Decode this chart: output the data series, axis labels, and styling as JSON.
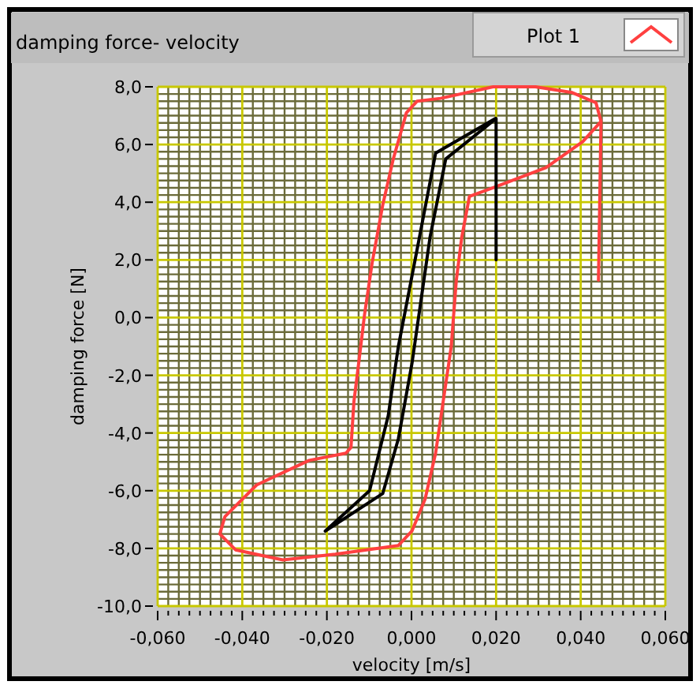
{
  "chart_data": {
    "type": "line",
    "title": "damping force- velocity",
    "xlabel": "velocity [m/s]",
    "ylabel": "damping force [N]",
    "xlim": [
      -0.06,
      0.06
    ],
    "ylim": [
      -10,
      8
    ],
    "xticks": [
      {
        "value": -0.06,
        "label": "-0,060"
      },
      {
        "value": -0.0575,
        "label": null
      },
      {
        "value": -0.055,
        "label": null
      },
      {
        "value": -0.0525,
        "label": null
      },
      {
        "value": -0.05,
        "label": null
      },
      {
        "value": -0.0475,
        "label": null
      },
      {
        "value": -0.045,
        "label": null
      },
      {
        "value": -0.0425,
        "label": null
      },
      {
        "value": -0.04,
        "label": "-0,040"
      },
      {
        "value": -0.0375,
        "label": null
      },
      {
        "value": -0.035,
        "label": null
      },
      {
        "value": -0.0325,
        "label": null
      },
      {
        "value": -0.03,
        "label": null
      },
      {
        "value": -0.0275,
        "label": null
      },
      {
        "value": -0.025,
        "label": null
      },
      {
        "value": -0.0225,
        "label": null
      },
      {
        "value": -0.02,
        "label": "-0,020"
      },
      {
        "value": -0.0175,
        "label": null
      },
      {
        "value": -0.015,
        "label": null
      },
      {
        "value": -0.0125,
        "label": null
      },
      {
        "value": -0.01,
        "label": null
      },
      {
        "value": -0.0075,
        "label": null
      },
      {
        "value": -0.005,
        "label": null
      },
      {
        "value": -0.0025,
        "label": null
      },
      {
        "value": 0,
        "label": "0,000"
      },
      {
        "value": 0.0025,
        "label": null
      },
      {
        "value": 0.005,
        "label": null
      },
      {
        "value": 0.0075,
        "label": null
      },
      {
        "value": 0.01,
        "label": null
      },
      {
        "value": 0.0125,
        "label": null
      },
      {
        "value": 0.015,
        "label": null
      },
      {
        "value": 0.0175,
        "label": null
      },
      {
        "value": 0.02,
        "label": "0,020"
      },
      {
        "value": 0.0225,
        "label": null
      },
      {
        "value": 0.025,
        "label": null
      },
      {
        "value": 0.0275,
        "label": null
      },
      {
        "value": 0.03,
        "label": null
      },
      {
        "value": 0.0325,
        "label": null
      },
      {
        "value": 0.035,
        "label": null
      },
      {
        "value": 0.0375,
        "label": null
      },
      {
        "value": 0.04,
        "label": "0,040"
      },
      {
        "value": 0.0425,
        "label": null
      },
      {
        "value": 0.045,
        "label": null
      },
      {
        "value": 0.0475,
        "label": null
      },
      {
        "value": 0.05,
        "label": null
      },
      {
        "value": 0.0525,
        "label": null
      },
      {
        "value": 0.055,
        "label": null
      },
      {
        "value": 0.0575,
        "label": null
      },
      {
        "value": 0.06,
        "label": "0,060"
      }
    ],
    "yticks": [
      {
        "value": -10,
        "label": "-10,0"
      },
      {
        "value": -9.75,
        "label": null
      },
      {
        "value": -9.5,
        "label": null
      },
      {
        "value": -9.25,
        "label": null
      },
      {
        "value": -9,
        "label": null
      },
      {
        "value": -8.75,
        "label": null
      },
      {
        "value": -8.5,
        "label": null
      },
      {
        "value": -8.25,
        "label": null
      },
      {
        "value": -8,
        "label": "-8,0"
      },
      {
        "value": -7.75,
        "label": null
      },
      {
        "value": -7.5,
        "label": null
      },
      {
        "value": -7.25,
        "label": null
      },
      {
        "value": -7,
        "label": null
      },
      {
        "value": -6.75,
        "label": null
      },
      {
        "value": -6.5,
        "label": null
      },
      {
        "value": -6.25,
        "label": null
      },
      {
        "value": -6,
        "label": "-6,0"
      },
      {
        "value": -5.75,
        "label": null
      },
      {
        "value": -5.5,
        "label": null
      },
      {
        "value": -5.25,
        "label": null
      },
      {
        "value": -5,
        "label": null
      },
      {
        "value": -4.75,
        "label": null
      },
      {
        "value": -4.5,
        "label": null
      },
      {
        "value": -4.25,
        "label": null
      },
      {
        "value": -4,
        "label": "-4,0"
      },
      {
        "value": -3.75,
        "label": null
      },
      {
        "value": -3.5,
        "label": null
      },
      {
        "value": -3.25,
        "label": null
      },
      {
        "value": -3,
        "label": null
      },
      {
        "value": -2.75,
        "label": null
      },
      {
        "value": -2.5,
        "label": null
      },
      {
        "value": -2.25,
        "label": null
      },
      {
        "value": -2,
        "label": "-2,0"
      },
      {
        "value": -1.75,
        "label": null
      },
      {
        "value": -1.5,
        "label": null
      },
      {
        "value": -1.25,
        "label": null
      },
      {
        "value": -1,
        "label": null
      },
      {
        "value": -0.75,
        "label": null
      },
      {
        "value": -0.5,
        "label": null
      },
      {
        "value": -0.25,
        "label": null
      },
      {
        "value": 0,
        "label": "0,0"
      },
      {
        "value": 0.25,
        "label": null
      },
      {
        "value": 0.5,
        "label": null
      },
      {
        "value": 0.75,
        "label": null
      },
      {
        "value": 1,
        "label": null
      },
      {
        "value": 1.25,
        "label": null
      },
      {
        "value": 1.5,
        "label": null
      },
      {
        "value": 1.75,
        "label": null
      },
      {
        "value": 2,
        "label": "2,0"
      },
      {
        "value": 2.25,
        "label": null
      },
      {
        "value": 2.5,
        "label": null
      },
      {
        "value": 2.75,
        "label": null
      },
      {
        "value": 3,
        "label": null
      },
      {
        "value": 3.25,
        "label": null
      },
      {
        "value": 3.5,
        "label": null
      },
      {
        "value": 3.75,
        "label": null
      },
      {
        "value": 4,
        "label": "4,0"
      },
      {
        "value": 4.25,
        "label": null
      },
      {
        "value": 4.5,
        "label": null
      },
      {
        "value": 4.75,
        "label": null
      },
      {
        "value": 5,
        "label": null
      },
      {
        "value": 5.25,
        "label": null
      },
      {
        "value": 5.5,
        "label": null
      },
      {
        "value": 5.75,
        "label": null
      },
      {
        "value": 6,
        "label": "6,0"
      },
      {
        "value": 6.25,
        "label": null
      },
      {
        "value": 6.5,
        "label": null
      },
      {
        "value": 6.75,
        "label": null
      },
      {
        "value": 7,
        "label": null
      },
      {
        "value": 7.25,
        "label": null
      },
      {
        "value": 7.5,
        "label": null
      },
      {
        "value": 7.75,
        "label": null
      },
      {
        "value": 8,
        "label": "8,0"
      }
    ],
    "grid": true,
    "legend": "top right",
    "marker": "none",
    "line_style": "solid",
    "series": [
      {
        "name": "Plot 1",
        "color": "#ff4040",
        "x": [
          0.0442,
          0.0448,
          0.0436,
          0.038,
          0.0293,
          0.0193,
          0.0069,
          0.0013,
          -0.0012,
          -0.0043,
          -0.0068,
          -0.0093,
          -0.0111,
          -0.0125,
          -0.0136,
          -0.0143,
          -0.0155,
          -0.0242,
          -0.0366,
          -0.0441,
          -0.0453,
          -0.0416,
          -0.0304,
          -0.018,
          -0.0031,
          0.0001,
          0.0032,
          0.0057,
          0.0075,
          0.0094,
          0.0106,
          0.0119,
          0.0137,
          0.0193,
          0.0318,
          0.0405,
          0.0448
        ],
        "values": [
          1.3,
          6.8,
          7.45,
          7.8,
          8.0,
          8.0,
          7.6,
          7.5,
          7.1,
          5.5,
          3.9,
          1.9,
          0.1,
          -1.6,
          -2.9,
          -4.5,
          -4.7,
          -4.95,
          -5.8,
          -6.9,
          -7.5,
          -8.05,
          -8.4,
          -8.2,
          -7.9,
          -7.4,
          -6.3,
          -4.7,
          -2.9,
          -1.0,
          1.3,
          2.8,
          4.2,
          4.5,
          5.2,
          6.1,
          6.8
        ]
      },
      {
        "color": "#000000",
        "x": [
          0.02,
          0.02,
          0.0081,
          0.0044,
          0.0001,
          -0.0031,
          -0.0068,
          -0.0204,
          -0.0099,
          -0.0055,
          -0.0031,
          0.0019,
          0.0057,
          0.0198
        ],
        "values": [
          2.0,
          6.9,
          5.5,
          2.8,
          -1.6,
          -4.2,
          -6.1,
          -7.4,
          -6.0,
          -3.4,
          -1.0,
          2.8,
          5.7,
          6.9
        ]
      }
    ]
  }
}
